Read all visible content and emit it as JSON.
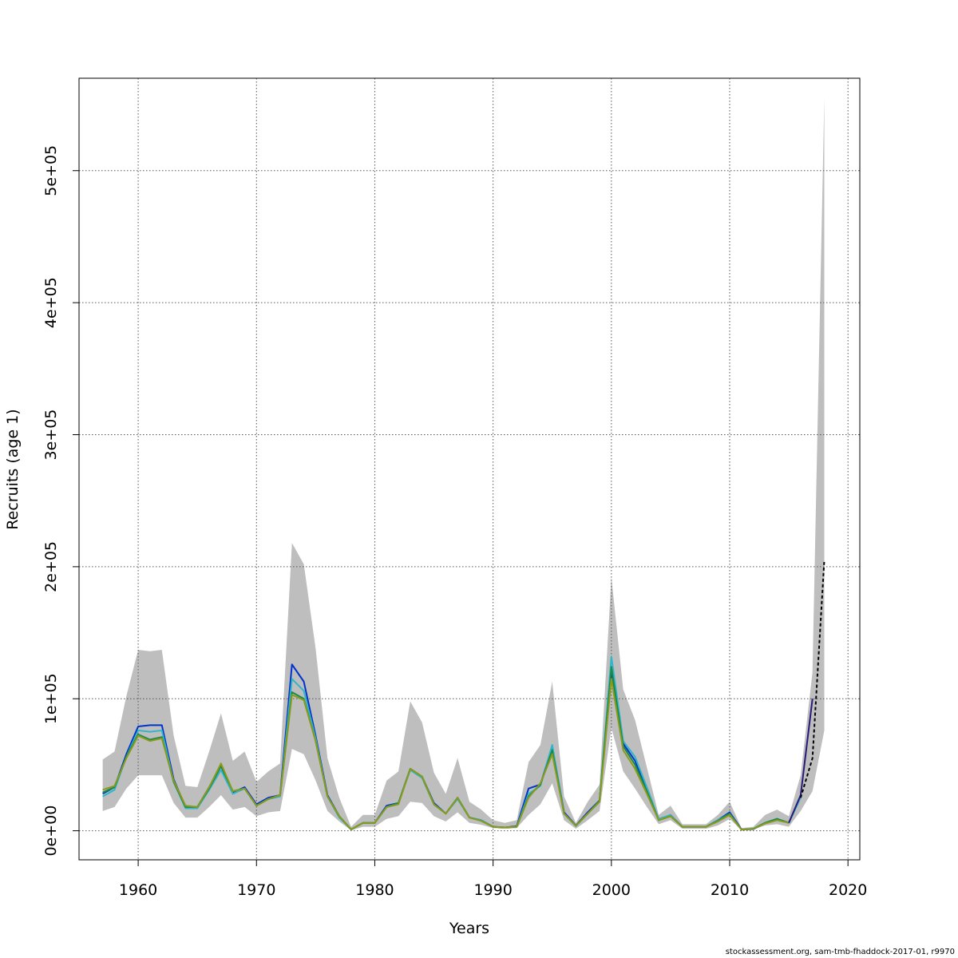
{
  "chart_data": {
    "type": "line",
    "title": "",
    "xlabel": "Years",
    "ylabel": "Recruits (age 1)",
    "xlim": [
      1955,
      2021
    ],
    "ylim": [
      -22000,
      570000
    ],
    "x_ticks": [
      1960,
      1970,
      1980,
      1990,
      2000,
      2010,
      2020
    ],
    "x_tick_labels": [
      "1960",
      "1970",
      "1980",
      "1990",
      "2000",
      "2010",
      "2020"
    ],
    "y_ticks": [
      0,
      100000,
      200000,
      300000,
      400000,
      500000
    ],
    "y_tick_labels": [
      "0e+00",
      "1e+05",
      "2e+05",
      "3e+05",
      "4e+05",
      "5e+05"
    ],
    "grid": true,
    "confidence_band": {
      "x": [
        1957,
        1958,
        1959,
        1960,
        1961,
        1962,
        1963,
        1964,
        1965,
        1966,
        1967,
        1968,
        1969,
        1970,
        1971,
        1972,
        1973,
        1974,
        1975,
        1976,
        1977,
        1978,
        1979,
        1980,
        1981,
        1982,
        1983,
        1984,
        1985,
        1986,
        1987,
        1988,
        1989,
        1990,
        1991,
        1992,
        1993,
        1994,
        1995,
        1996,
        1997,
        1998,
        1999,
        2000,
        2001,
        2002,
        2003,
        2004,
        2005,
        2006,
        2007,
        2008,
        2009,
        2010,
        2011,
        2012,
        2013,
        2014,
        2015,
        2016,
        2017,
        2018
      ],
      "upper": [
        54000,
        60000,
        102000,
        137000,
        136000,
        137000,
        72000,
        34000,
        33000,
        60000,
        89000,
        53000,
        60000,
        37000,
        45000,
        51000,
        218000,
        202000,
        138000,
        55000,
        25000,
        3000,
        12000,
        12000,
        38000,
        45000,
        98000,
        82000,
        44000,
        28000,
        55000,
        22000,
        16000,
        8000,
        6000,
        8000,
        52000,
        65000,
        113000,
        26000,
        6000,
        22000,
        35000,
        192000,
        107000,
        84000,
        48000,
        12000,
        19000,
        5000,
        5000,
        5000,
        12000,
        22000,
        2000,
        3000,
        12000,
        16000,
        11000,
        42000,
        120000,
        555000
      ],
      "lower": [
        15000,
        18000,
        32000,
        42000,
        42000,
        42000,
        21000,
        10000,
        10000,
        18000,
        27000,
        16000,
        18000,
        11000,
        14000,
        15000,
        62000,
        58000,
        38000,
        15000,
        7000,
        300,
        3000,
        3000,
        9000,
        11000,
        22000,
        21000,
        11000,
        7000,
        14000,
        6000,
        4500,
        2000,
        1500,
        2000,
        12000,
        20000,
        36000,
        8000,
        1500,
        8000,
        15000,
        78000,
        45000,
        32000,
        18000,
        5000,
        8000,
        1500,
        1500,
        1500,
        4000,
        9000,
        300,
        1000,
        4000,
        5000,
        3000,
        15000,
        30000,
        76000
      ]
    },
    "series": [
      {
        "color": "#0033cc",
        "x": [
          1957,
          1958,
          1959,
          1960,
          1961,
          1962,
          1963,
          1964,
          1965,
          1966,
          1967,
          1968,
          1969,
          1970,
          1971,
          1972,
          1973,
          1974,
          1975,
          1976,
          1977,
          1978,
          1979,
          1980,
          1981,
          1982,
          1983,
          1984,
          1985,
          1986,
          1987,
          1988,
          1989,
          1990,
          1991,
          1992,
          1993,
          1994,
          1995,
          1996,
          1997,
          1998,
          1999,
          2000,
          2001,
          2002,
          2003,
          2004,
          2005,
          2006,
          2007,
          2008,
          2009,
          2010,
          2011,
          2012,
          2013,
          2014,
          2015
        ],
        "values": [
          28000,
          33000,
          58000,
          79000,
          80000,
          80000,
          39000,
          18000,
          18000,
          33000,
          49000,
          29000,
          33000,
          20000,
          25000,
          27000,
          126000,
          113000,
          72000,
          27000,
          11000,
          1000,
          6000,
          6000,
          19000,
          21000,
          47000,
          41000,
          21000,
          13000,
          25000,
          10000,
          8000,
          3000,
          2500,
          3500,
          32000,
          35000,
          64000,
          14000,
          4000,
          14000,
          23000,
          121000,
          66000,
          53000,
          31000,
          8000,
          12000,
          3000,
          3000,
          3000,
          8000,
          14000,
          1000,
          1200,
          6000,
          9000,
          6000
        ]
      },
      {
        "color": "#33b5c8",
        "x": [
          1957,
          1958,
          1959,
          1960,
          1961,
          1962,
          1963,
          1964,
          1965,
          1966,
          1967,
          1968,
          1969,
          1970,
          1971,
          1972,
          1973,
          1974,
          1975,
          1976,
          1977,
          1978,
          1979,
          1980,
          1981,
          1982,
          1983,
          1984,
          1985,
          1986,
          1987,
          1988,
          1989,
          1990,
          1991,
          1992,
          1993,
          1994,
          1995,
          1996,
          1997,
          1998,
          1999,
          2000,
          2001,
          2002,
          2003,
          2004,
          2005,
          2006,
          2007,
          2008,
          2009,
          2010,
          2011,
          2012,
          2013,
          2014,
          2015,
          2016
        ],
        "values": [
          26000,
          31000,
          56000,
          76000,
          75000,
          76000,
          37000,
          17000,
          17000,
          31000,
          46000,
          28000,
          32000,
          19000,
          24000,
          26000,
          115000,
          106000,
          70000,
          26000,
          10000,
          1000,
          6000,
          6000,
          18000,
          21000,
          46000,
          40000,
          20000,
          13000,
          24000,
          10000,
          8000,
          3000,
          2500,
          3000,
          28000,
          34000,
          65000,
          13000,
          3500,
          13000,
          22000,
          132000,
          68000,
          56000,
          33000,
          9000,
          12000,
          3000,
          3000,
          3000,
          8000,
          13000,
          800,
          1500,
          6000,
          9000,
          6000,
          25000
        ]
      },
      {
        "color": "#1a8a4a",
        "x": [
          1957,
          1958,
          1959,
          1960,
          1961,
          1962,
          1963,
          1964,
          1965,
          1966,
          1967,
          1968,
          1969,
          1970,
          1971,
          1972,
          1973,
          1974,
          1975,
          1976,
          1977,
          1978,
          1979,
          1980,
          1981,
          1982,
          1983,
          1984,
          1985,
          1986,
          1987,
          1988,
          1989,
          1990,
          1991,
          1992,
          1993,
          1994,
          1995,
          1996,
          1997,
          1998,
          1999,
          2000,
          2001,
          2002,
          2003,
          2004,
          2005,
          2006,
          2007,
          2008,
          2009,
          2010,
          2011,
          2012,
          2013,
          2014,
          2015
        ],
        "values": [
          29000,
          33000,
          56000,
          73000,
          69000,
          71000,
          37000,
          18000,
          18000,
          32000,
          49000,
          30000,
          32000,
          19000,
          24000,
          27000,
          105000,
          100000,
          68000,
          26000,
          11000,
          1000,
          6000,
          6000,
          18000,
          21000,
          47000,
          41000,
          20000,
          13000,
          25000,
          10000,
          7500,
          3000,
          2500,
          3000,
          26000,
          35000,
          61000,
          13000,
          3800,
          13000,
          23000,
          124000,
          64000,
          50000,
          30000,
          8000,
          11000,
          3000,
          3000,
          3000,
          7500,
          13000,
          800,
          1500,
          6000,
          9000,
          6000
        ]
      },
      {
        "color": "#8a9a1a",
        "x": [
          1957,
          1958,
          1959,
          1960,
          1961,
          1962,
          1963,
          1964,
          1965,
          1966,
          1967,
          1968,
          1969,
          1970,
          1971,
          1972,
          1973,
          1974,
          1975,
          1976,
          1977,
          1978,
          1979,
          1980,
          1981,
          1982,
          1983,
          1984,
          1985,
          1986,
          1987,
          1988,
          1989,
          1990,
          1991,
          1992,
          1993,
          1994,
          1995,
          1996,
          1997,
          1998,
          1999,
          2000,
          2001,
          2002,
          2003,
          2004,
          2005,
          2006,
          2007,
          2008,
          2009,
          2010,
          2011,
          2012,
          2013,
          2014,
          2015
        ],
        "values": [
          31000,
          34000,
          55000,
          72000,
          68000,
          70000,
          38000,
          19000,
          18000,
          33000,
          51000,
          30000,
          32000,
          19000,
          24000,
          27000,
          103000,
          99000,
          68000,
          26000,
          11000,
          1000,
          6000,
          6000,
          18000,
          20000,
          47000,
          41000,
          20000,
          13000,
          25000,
          10000,
          7500,
          3000,
          2500,
          3000,
          25000,
          36000,
          58000,
          13000,
          3800,
          13000,
          22000,
          115000,
          61000,
          47000,
          28000,
          8000,
          11000,
          3000,
          3000,
          3000,
          7000,
          12000,
          800,
          1500,
          5500,
          8000,
          6000
        ]
      },
      {
        "color": "#2a1a7a",
        "x": [
          2015,
          2016,
          2017
        ],
        "values": [
          6000,
          27000,
          100000
        ]
      },
      {
        "color": "#000000",
        "dashed": true,
        "x": [
          2016,
          2017,
          2018
        ],
        "values": [
          25000,
          55000,
          205000
        ]
      }
    ]
  },
  "footer": "stockassessment.org, sam-tmb-fhaddock-2017-01, r9970"
}
